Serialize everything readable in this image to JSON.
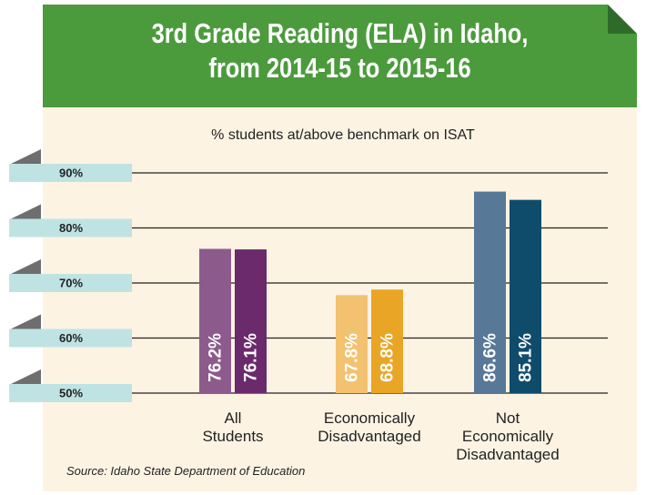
{
  "chart_data": {
    "type": "bar",
    "title": "3rd Grade Reading (ELA) in Idaho,\nfrom 2014-15 to 2015-16",
    "subtitle": "% students at/above benchmark on ISAT",
    "source": "Source: Idaho State Department of Education",
    "categories": [
      "All\nStudents",
      "Economically\nDisadvantaged",
      "Not\nEconomically\nDisadvantaged"
    ],
    "series": [
      {
        "colors": [
          "#8c5b8c",
          "#f2c270",
          "#577896"
        ],
        "values": [
          76.2,
          67.8,
          86.6
        ],
        "value_labels": [
          "76.2%",
          "67.8%",
          "86.6%"
        ]
      },
      {
        "colors": [
          "#6b2a6b",
          "#e9a526",
          "#0f4c6c"
        ],
        "values": [
          76.1,
          68.8,
          85.1
        ],
        "value_labels": [
          "76.1%",
          "68.8%",
          "85.1%"
        ]
      }
    ],
    "ylim": [
      50,
      95
    ],
    "yticks": [
      {
        "value": 50,
        "label": "50%"
      },
      {
        "value": 60,
        "label": "60%"
      },
      {
        "value": 70,
        "label": "70%"
      },
      {
        "value": 80,
        "label": "80%"
      },
      {
        "value": 90,
        "label": "90%"
      }
    ],
    "grid": true
  }
}
